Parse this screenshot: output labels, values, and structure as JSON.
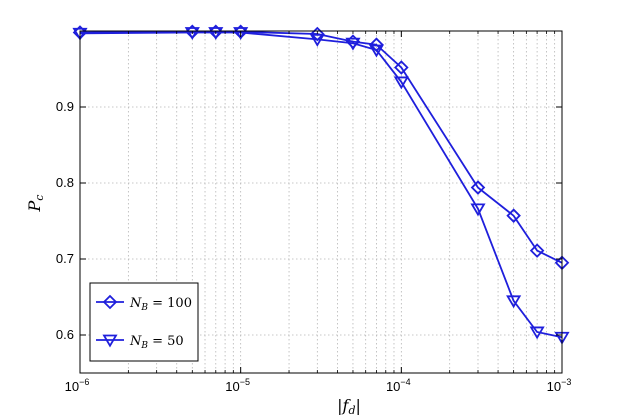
{
  "chart_data": {
    "type": "line",
    "title": "",
    "xlabel": "|f_d|",
    "ylabel": "P_c",
    "xscale": "log",
    "xlim": [
      1e-06,
      0.001
    ],
    "ylim": [
      0.55,
      1.0
    ],
    "grid": true,
    "legend_position": "bottom-left",
    "x_ticks": [
      {
        "value": 1e-06,
        "base": "10",
        "exp": "−6"
      },
      {
        "value": 1e-05,
        "base": "10",
        "exp": "−5"
      },
      {
        "value": 0.0001,
        "base": "10",
        "exp": "−4"
      },
      {
        "value": 0.001,
        "base": "10",
        "exp": "−3"
      }
    ],
    "y_ticks": [
      "0.6",
      "0.7",
      "0.8",
      "0.9"
    ],
    "series": [
      {
        "name": "N_B = 100",
        "name_main": "N",
        "name_sub": "B",
        "name_rest": " = 100",
        "marker": "diamond",
        "color": "#1f1fdc",
        "x": [
          1e-06,
          5e-06,
          7e-06,
          1e-05,
          3e-05,
          5e-05,
          7e-05,
          0.0001,
          0.0003,
          0.0005,
          0.0007,
          0.001
        ],
        "y": [
          0.998,
          0.999,
          0.999,
          0.999,
          0.996,
          0.986,
          0.982,
          0.952,
          0.794,
          0.757,
          0.711,
          0.695
        ]
      },
      {
        "name": "N_B = 50",
        "name_main": "N",
        "name_sub": "B",
        "name_rest": " = 50",
        "marker": "triangle-down",
        "color": "#1f1fdc",
        "x": [
          1e-06,
          5e-06,
          7e-06,
          1e-05,
          3e-05,
          5e-05,
          7e-05,
          0.0001,
          0.0003,
          0.0005,
          0.0007,
          0.001
        ],
        "y": [
          0.997,
          0.998,
          0.998,
          0.998,
          0.989,
          0.984,
          0.975,
          0.933,
          0.766,
          0.645,
          0.604,
          0.597
        ]
      }
    ]
  }
}
